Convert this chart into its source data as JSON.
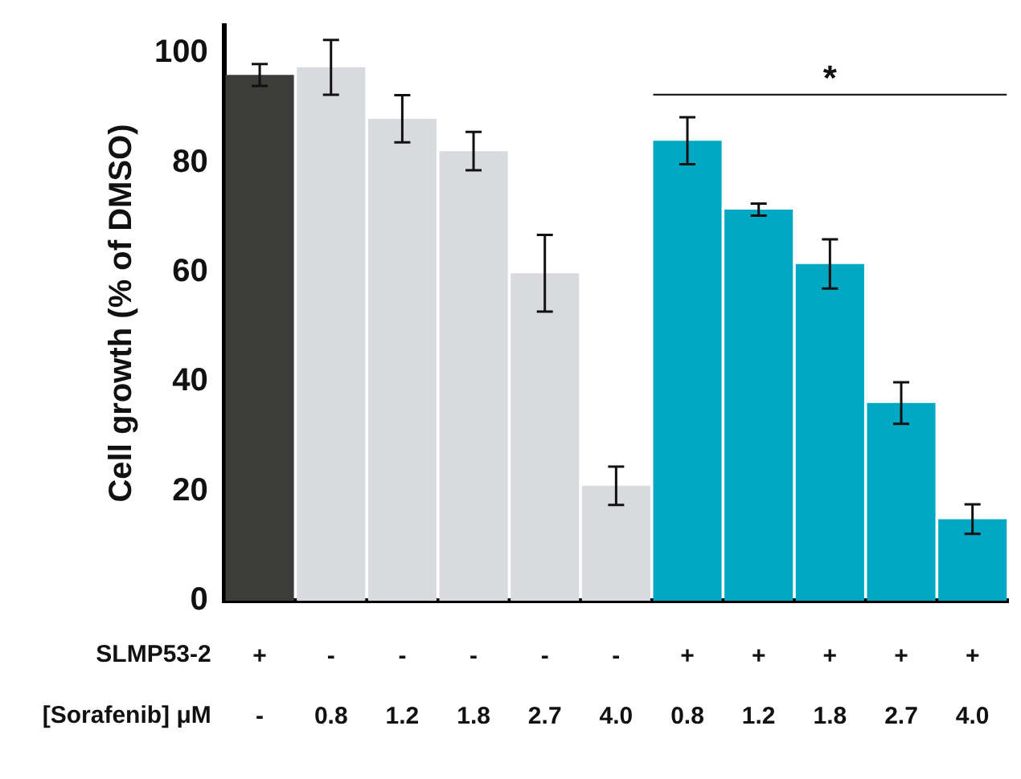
{
  "chart_data": {
    "type": "bar",
    "ylabel": "Cell growth (% of DMSO)",
    "xlabel": "SLMP53-2\n[Sorafenib] μM",
    "categories": [
      "+\n-",
      "-\n0.8",
      "-\n1.2",
      "-\n1.8",
      "-\n2.7",
      "-\n4.0",
      "+\n0.8",
      "+\n1.2",
      "+\n1.8",
      "+\n2.7",
      "+\n4.0"
    ],
    "values": [
      96,
      97.4,
      88,
      82.1,
      59.8,
      21,
      84,
      71.4,
      61.5,
      36.1,
      14.9
    ],
    "errors": [
      2,
      5,
      4.3,
      3.5,
      7,
      3.5,
      4.3,
      1.1,
      4.5,
      3.8,
      2.7
    ],
    "colors": [
      "#3c3c3b",
      "#d9dadd",
      "#d9dadd",
      "#d9dadd",
      "#d9dadd",
      "#d9dadd",
      "#00a8c4",
      "#00a8c4",
      "#00a8c4",
      "#00a8c4",
      "#00a8c4"
    ],
    "ylim": [
      0,
      105
    ],
    "yticks": [
      0,
      20,
      40,
      60,
      80,
      100
    ],
    "grid": false,
    "legend": false,
    "annotations": [
      "*"
    ]
  }
}
